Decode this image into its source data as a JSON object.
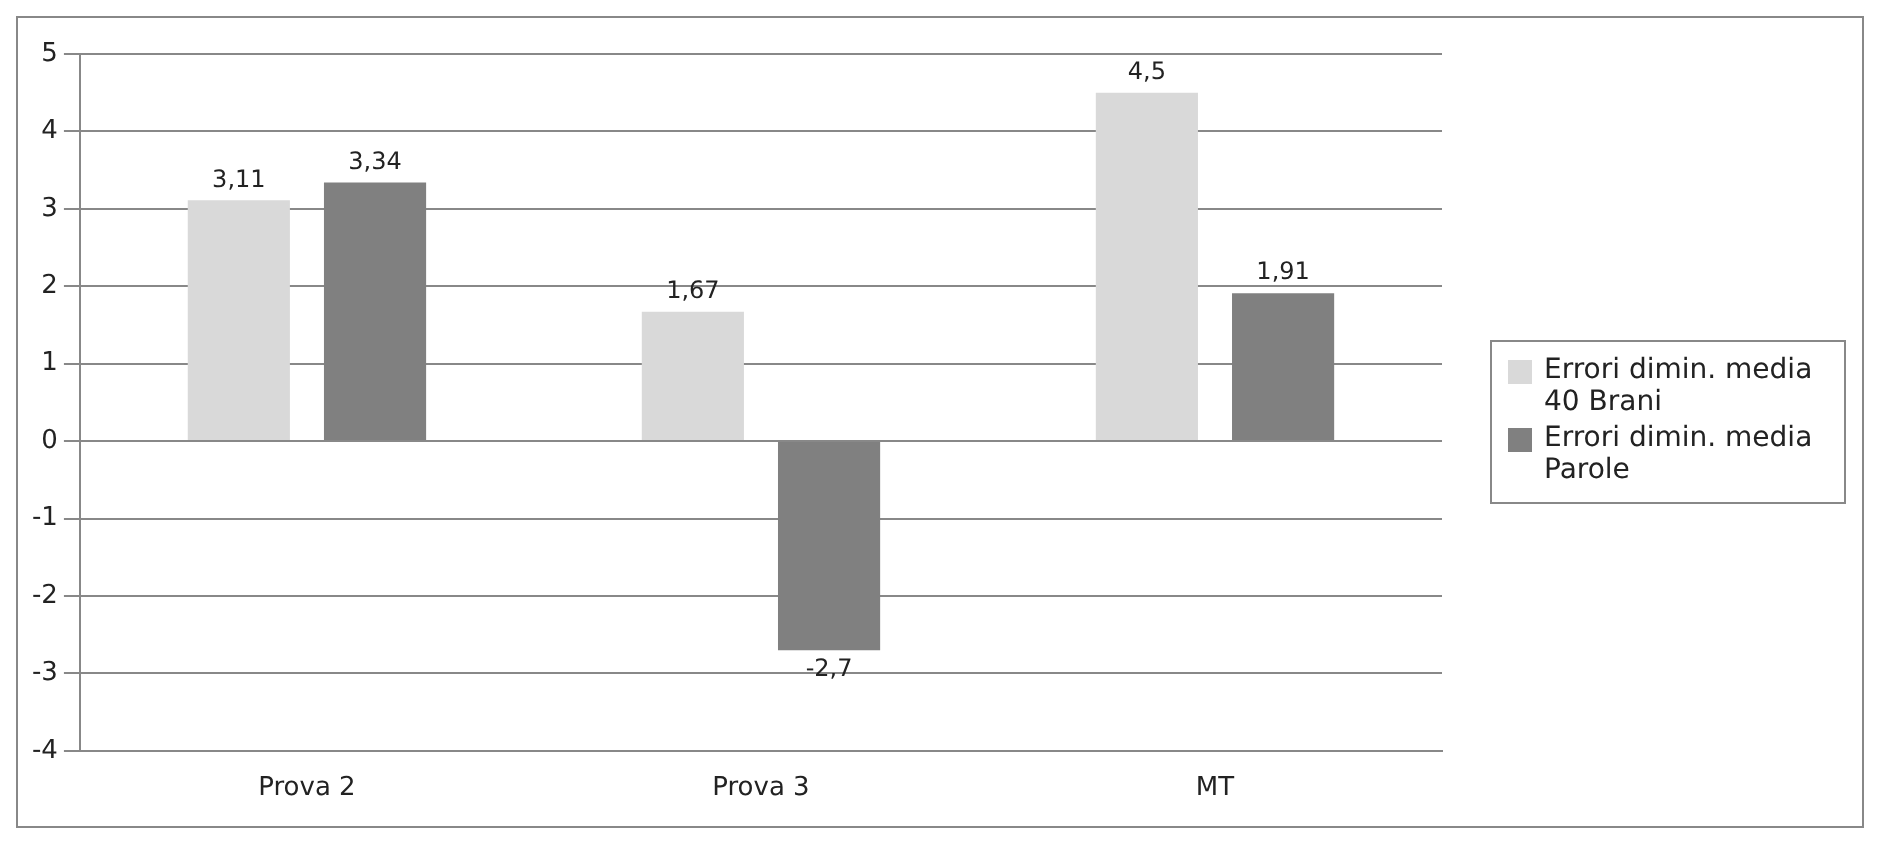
{
  "chart_data": {
    "type": "bar",
    "categories": [
      "Prova 2",
      "Prova 3",
      "MT"
    ],
    "series": [
      {
        "name": "Errori dimin. media 40 Brani",
        "color": "#d9d9d9",
        "values": [
          3.11,
          1.67,
          4.5
        ],
        "value_labels": [
          "3,11",
          "1,67",
          "4,5"
        ]
      },
      {
        "name": "Errori dimin. media Parole",
        "color": "#808080",
        "values": [
          3.34,
          -2.7,
          1.91
        ],
        "value_labels": [
          "3,34",
          "-2,7",
          "1,91"
        ]
      }
    ],
    "ylim": [
      -4,
      5
    ],
    "yticks": [
      -4,
      -3,
      -2,
      -1,
      0,
      1,
      2,
      3,
      4,
      5
    ],
    "grid": "y",
    "legend": "right"
  }
}
